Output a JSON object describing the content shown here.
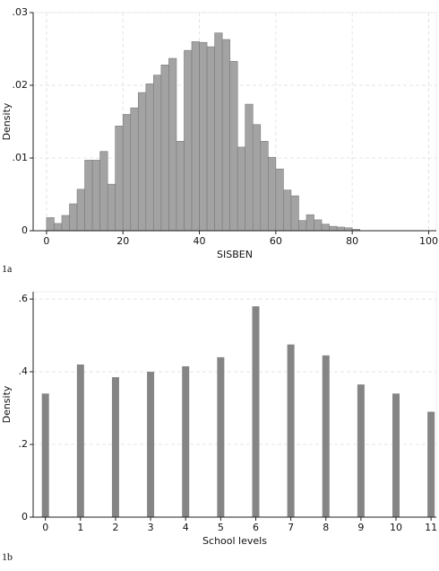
{
  "chart_data": [
    {
      "type": "histogram",
      "caption": "1a",
      "xlabel": "SISBEN",
      "ylabel": "Density",
      "bins": [
        0,
        2,
        4,
        6,
        8,
        10,
        12,
        14,
        16,
        18,
        20,
        22,
        24,
        26,
        28,
        30,
        32,
        34,
        36,
        38,
        40,
        42,
        44,
        46,
        48,
        50,
        52,
        54,
        56,
        58,
        60,
        62,
        64,
        66,
        68,
        70,
        72,
        74,
        76,
        78,
        80,
        82
      ],
      "values": [
        0.0018,
        0.001,
        0.0021,
        0.0037,
        0.0057,
        0.0097,
        0.0097,
        0.0109,
        0.0064,
        0.0144,
        0.016,
        0.0169,
        0.019,
        0.0202,
        0.0214,
        0.0228,
        0.0237,
        0.0123,
        0.0248,
        0.026,
        0.0259,
        0.0253,
        0.0272,
        0.0263,
        0.0233,
        0.0115,
        0.0174,
        0.0146,
        0.0123,
        0.0101,
        0.0085,
        0.0056,
        0.0048,
        0.0014,
        0.0022,
        0.0015,
        0.0009,
        0.0006,
        0.0005,
        0.0004,
        0.0002
      ],
      "color": "#a3a3a3",
      "xlim": [
        -3.5,
        102
      ],
      "xticks": [
        0,
        20,
        40,
        60,
        80,
        100
      ],
      "ylim": [
        0,
        0.03
      ],
      "yticks": [
        0,
        {
          "value": 0.01,
          "label": ".01"
        },
        {
          "value": 0.02,
          "label": ".02"
        },
        {
          "value": 0.03,
          "label": ".03"
        }
      ],
      "grid": true
    },
    {
      "type": "bar",
      "caption": "1b",
      "xlabel": "School levels",
      "ylabel": "Density",
      "x": [
        0,
        1,
        2,
        3,
        4,
        5,
        6,
        7,
        8,
        9,
        10,
        11
      ],
      "values": [
        0.34,
        0.42,
        0.385,
        0.4,
        0.415,
        0.44,
        0.58,
        0.475,
        0.445,
        0.365,
        0.34,
        0.29
      ],
      "color": "#858585",
      "xlim": [
        -0.35,
        11.15
      ],
      "xticks": [
        0,
        1,
        2,
        3,
        4,
        5,
        6,
        7,
        8,
        9,
        10,
        11
      ],
      "ylim": [
        0,
        0.62
      ],
      "yticks": [
        0,
        {
          "value": 0.2,
          "label": ".2"
        },
        {
          "value": 0.4,
          "label": ".4"
        },
        {
          "value": 0.6,
          "label": ".6"
        }
      ],
      "grid": true
    }
  ]
}
